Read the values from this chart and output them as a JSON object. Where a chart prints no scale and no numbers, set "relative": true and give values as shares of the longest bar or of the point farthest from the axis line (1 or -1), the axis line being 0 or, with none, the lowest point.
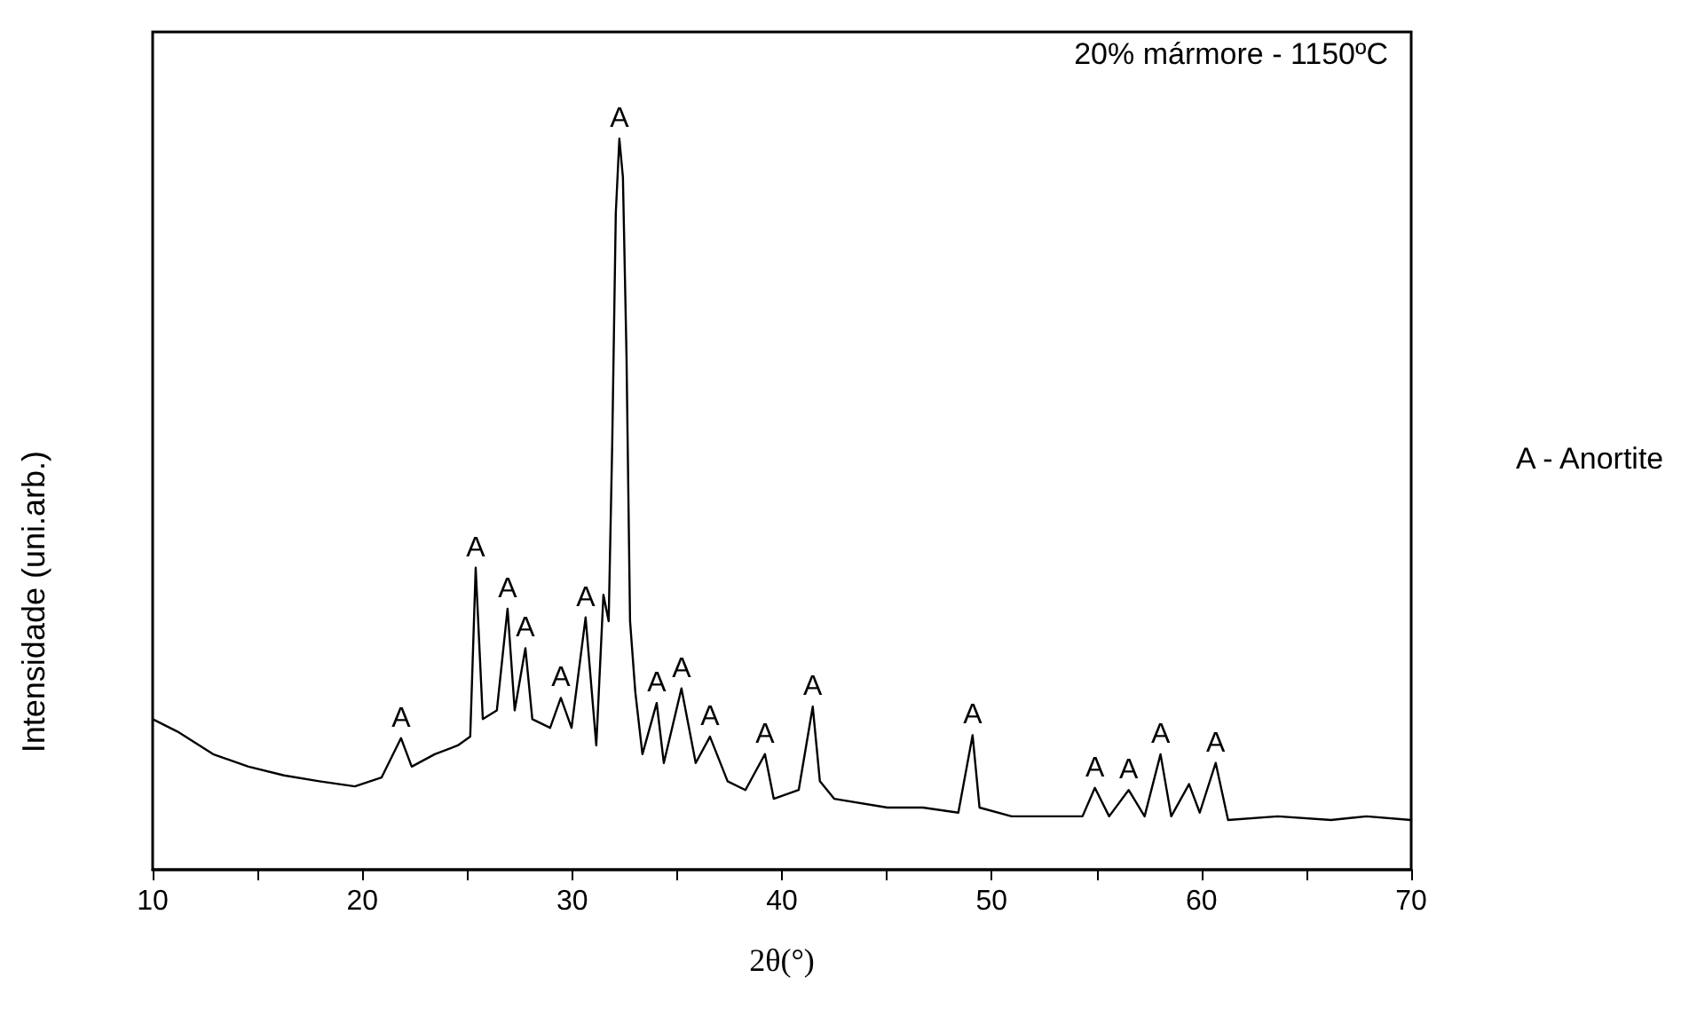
{
  "chart_data": {
    "type": "line",
    "relative": true,
    "xlabel": "2θ(°)",
    "ylabel": "Intensidade (uni.arb.)",
    "color": "#000000",
    "xlim": [
      10,
      70
    ],
    "xticks": [
      10,
      20,
      30,
      40,
      50,
      60,
      70
    ],
    "grid": false,
    "marker": "none",
    "line_style": "solid",
    "x": [
      10.0,
      11.18,
      12.88,
      14.57,
      16.26,
      17.95,
      19.64,
      20.91,
      21.84,
      22.35,
      23.45,
      24.55,
      25.14,
      25.4,
      25.74,
      26.41,
      26.92,
      27.26,
      27.77,
      28.1,
      28.95,
      29.46,
      29.97,
      30.64,
      31.15,
      31.49,
      31.74,
      31.91,
      32.08,
      32.25,
      32.42,
      32.59,
      32.76,
      33.01,
      33.35,
      34.03,
      34.37,
      35.21,
      35.89,
      36.57,
      37.41,
      38.26,
      39.19,
      39.61,
      40.8,
      41.47,
      41.81,
      42.49,
      45.03,
      46.72,
      48.41,
      49.09,
      49.42,
      50.95,
      52.64,
      54.33,
      54.92,
      55.6,
      56.53,
      57.29,
      58.05,
      58.56,
      59.41,
      59.92,
      60.68,
      61.27,
      63.64,
      66.18,
      67.87,
      69.98
    ],
    "values": [
      0.206,
      0.189,
      0.158,
      0.141,
      0.129,
      0.121,
      0.114,
      0.126,
      0.18,
      0.141,
      0.158,
      0.17,
      0.182,
      0.413,
      0.206,
      0.218,
      0.357,
      0.218,
      0.303,
      0.206,
      0.194,
      0.235,
      0.194,
      0.345,
      0.17,
      0.376,
      0.34,
      0.583,
      0.898,
      1,
      0.947,
      0.704,
      0.34,
      0.243,
      0.158,
      0.228,
      0.146,
      0.248,
      0.146,
      0.182,
      0.121,
      0.109,
      0.158,
      0.097,
      0.109,
      0.223,
      0.121,
      0.097,
      0.085,
      0.085,
      0.078,
      0.184,
      0.085,
      0.073,
      0.073,
      0.073,
      0.112,
      0.073,
      0.109,
      0.073,
      0.158,
      0.073,
      0.117,
      0.078,
      0.146,
      0.068,
      0.073,
      0.068,
      0.073,
      0.068
    ],
    "annotations": [
      "20% mármore - 1150ºC",
      "A - Anortite",
      {
        "text": "A",
        "x": 21.84,
        "y": 0.18
      },
      {
        "text": "A",
        "x": 25.4,
        "y": 0.413
      },
      {
        "text": "A",
        "x": 26.92,
        "y": 0.357
      },
      {
        "text": "A",
        "x": 27.77,
        "y": 0.303
      },
      {
        "text": "A",
        "x": 29.46,
        "y": 0.235
      },
      {
        "text": "A",
        "x": 30.64,
        "y": 0.345
      },
      {
        "text": "A",
        "x": 32.25,
        "y": 1
      },
      {
        "text": "A",
        "x": 34.03,
        "y": 0.228
      },
      {
        "text": "A",
        "x": 35.21,
        "y": 0.248
      },
      {
        "text": "A",
        "x": 36.57,
        "y": 0.182
      },
      {
        "text": "A",
        "x": 39.19,
        "y": 0.158
      },
      {
        "text": "A",
        "x": 41.47,
        "y": 0.223
      },
      {
        "text": "A",
        "x": 49.09,
        "y": 0.184
      },
      {
        "text": "A",
        "x": 54.92,
        "y": 0.112
      },
      {
        "text": "A",
        "x": 56.53,
        "y": 0.109
      },
      {
        "text": "A",
        "x": 58.05,
        "y": 0.158
      },
      {
        "text": "A",
        "x": 60.68,
        "y": 0.146
      }
    ]
  }
}
